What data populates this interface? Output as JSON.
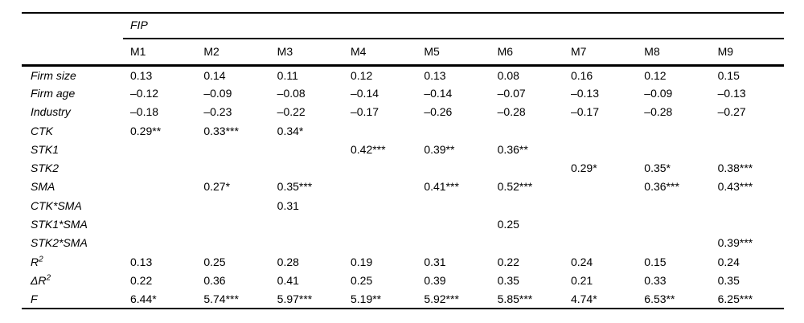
{
  "table": {
    "group_header": "FIP",
    "columns": [
      "M1",
      "M2",
      "M3",
      "M4",
      "M5",
      "M6",
      "M7",
      "M8",
      "M9"
    ],
    "rows": [
      {
        "label": "Firm size",
        "values": [
          "0.13",
          "0.14",
          "0.11",
          "0.12",
          "0.13",
          "0.08",
          "0.16",
          "0.12",
          "0.15"
        ]
      },
      {
        "label": "Firm age",
        "values": [
          "–0.12",
          "–0.09",
          "–0.08",
          "–0.14",
          "–0.14",
          "–0.07",
          "–0.13",
          "–0.09",
          "–0.13"
        ]
      },
      {
        "label": "Industry",
        "values": [
          "–0.18",
          "–0.23",
          "–0.22",
          "–0.17",
          "–0.26",
          "–0.28",
          "–0.17",
          "–0.28",
          "–0.27"
        ]
      },
      {
        "label": "CTK",
        "values": [
          "0.29**",
          "0.33***",
          "0.34*",
          "",
          "",
          "",
          "",
          "",
          ""
        ]
      },
      {
        "label": "STK1",
        "values": [
          "",
          "",
          "",
          "0.42***",
          "0.39**",
          "0.36**",
          "",
          "",
          ""
        ]
      },
      {
        "label": "STK2",
        "values": [
          "",
          "",
          "",
          "",
          "",
          "",
          "0.29*",
          "0.35*",
          "0.38***"
        ]
      },
      {
        "label": "SMA",
        "values": [
          "",
          "0.27*",
          "0.35***",
          "",
          "0.41***",
          "0.52***",
          "",
          "0.36***",
          "0.43***"
        ]
      },
      {
        "label": "CTK*SMA",
        "values": [
          "",
          "",
          "0.31",
          "",
          "",
          "",
          "",
          "",
          ""
        ]
      },
      {
        "label": "STK1*SMA",
        "values": [
          "",
          "",
          "",
          "",
          "",
          "0.25",
          "",
          "",
          ""
        ]
      },
      {
        "label": "STK2*SMA",
        "values": [
          "",
          "",
          "",
          "",
          "",
          "",
          "",
          "",
          "0.39***"
        ]
      },
      {
        "label": "R",
        "label_sup": "2",
        "values": [
          "0.13",
          "0.25",
          "0.28",
          "0.19",
          "0.31",
          "0.22",
          "0.24",
          "0.15",
          "0.24"
        ]
      },
      {
        "label": "ΔR",
        "label_sup": "2",
        "values": [
          "0.22",
          "0.36",
          "0.41",
          "0.25",
          "0.39",
          "0.35",
          "0.21",
          "0.33",
          "0.35"
        ]
      },
      {
        "label": "F",
        "values": [
          "6.44*",
          "5.74***",
          "5.97***",
          "5.19**",
          "5.92***",
          "5.85***",
          "4.74*",
          "6.53**",
          "6.25***"
        ]
      }
    ]
  },
  "chart_data": {
    "type": "table",
    "title": "FIP",
    "categories": [
      "M1",
      "M2",
      "M3",
      "M4",
      "M5",
      "M6",
      "M7",
      "M8",
      "M9"
    ],
    "series": [
      {
        "name": "Firm size",
        "values": [
          0.13,
          0.14,
          0.11,
          0.12,
          0.13,
          0.08,
          0.16,
          0.12,
          0.15
        ]
      },
      {
        "name": "Firm age",
        "values": [
          -0.12,
          -0.09,
          -0.08,
          -0.14,
          -0.14,
          -0.07,
          -0.13,
          -0.09,
          -0.13
        ]
      },
      {
        "name": "Industry",
        "values": [
          -0.18,
          -0.23,
          -0.22,
          -0.17,
          -0.26,
          -0.28,
          -0.17,
          -0.28,
          -0.27
        ]
      },
      {
        "name": "CTK",
        "values": [
          0.29,
          0.33,
          0.34,
          null,
          null,
          null,
          null,
          null,
          null
        ]
      },
      {
        "name": "STK1",
        "values": [
          null,
          null,
          null,
          0.42,
          0.39,
          0.36,
          null,
          null,
          null
        ]
      },
      {
        "name": "STK2",
        "values": [
          null,
          null,
          null,
          null,
          null,
          null,
          0.29,
          0.35,
          0.38
        ]
      },
      {
        "name": "SMA",
        "values": [
          null,
          0.27,
          0.35,
          null,
          0.41,
          0.52,
          null,
          0.36,
          0.43
        ]
      },
      {
        "name": "CTK*SMA",
        "values": [
          null,
          null,
          0.31,
          null,
          null,
          null,
          null,
          null,
          null
        ]
      },
      {
        "name": "STK1*SMA",
        "values": [
          null,
          null,
          null,
          null,
          null,
          0.25,
          null,
          null,
          null
        ]
      },
      {
        "name": "STK2*SMA",
        "values": [
          null,
          null,
          null,
          null,
          null,
          null,
          null,
          null,
          0.39
        ]
      },
      {
        "name": "R2",
        "values": [
          0.13,
          0.25,
          0.28,
          0.19,
          0.31,
          0.22,
          0.24,
          0.15,
          0.24
        ]
      },
      {
        "name": "ΔR2",
        "values": [
          0.22,
          0.36,
          0.41,
          0.25,
          0.39,
          0.35,
          0.21,
          0.33,
          0.35
        ]
      },
      {
        "name": "F",
        "values": [
          6.44,
          5.74,
          5.97,
          5.19,
          5.92,
          5.85,
          4.74,
          6.53,
          6.25
        ]
      }
    ]
  }
}
